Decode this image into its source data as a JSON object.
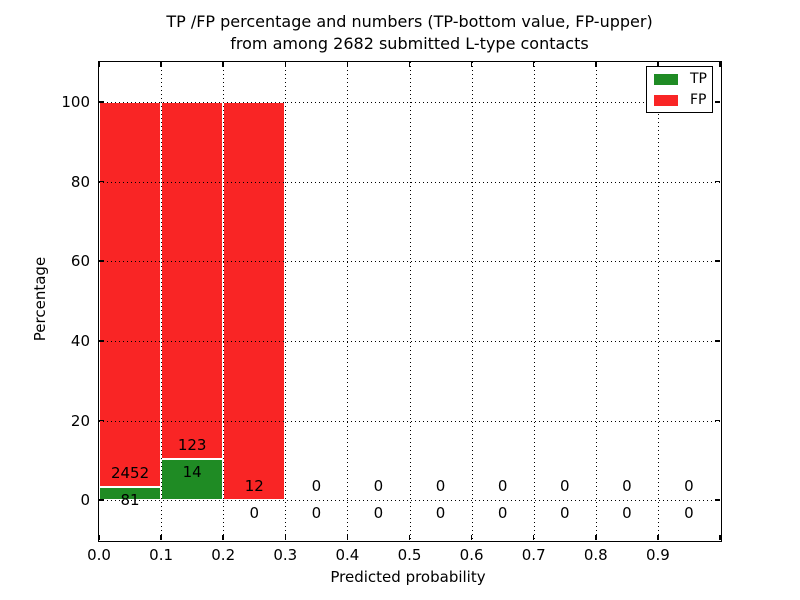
{
  "chart_data": {
    "type": "bar",
    "stacked": true,
    "percentage_normalized": true,
    "title_line1": "TP /FP percentage and numbers (TP-bottom value, FP-upper)",
    "title_line2": "from among 2682 submitted L-type contacts",
    "xlabel": "Predicted probability",
    "ylabel": "Percentage",
    "xlim": [
      0.0,
      1.0
    ],
    "ylim": [
      -10,
      110
    ],
    "xtick_labels": [
      "0.0",
      "0.1",
      "0.2",
      "0.3",
      "0.4",
      "0.5",
      "0.6",
      "0.7",
      "0.8",
      "0.9"
    ],
    "ytick_values": [
      0,
      20,
      40,
      60,
      80,
      100
    ],
    "grid_style": "dotted",
    "total_contacts": 2682,
    "legend": {
      "position": "upper right",
      "entries": [
        {
          "name": "TP",
          "color": "#1f8b24"
        },
        {
          "name": "FP",
          "color": "#f92525"
        }
      ]
    },
    "bins": [
      {
        "x_start": 0.0,
        "x_end": 0.1,
        "tp_count": 81,
        "fp_count": 2452,
        "tp_pct": 3.2,
        "fp_pct": 96.8
      },
      {
        "x_start": 0.1,
        "x_end": 0.2,
        "tp_count": 14,
        "fp_count": 123,
        "tp_pct": 10.2,
        "fp_pct": 89.8
      },
      {
        "x_start": 0.2,
        "x_end": 0.3,
        "tp_count": 0,
        "fp_count": 12,
        "tp_pct": 0.0,
        "fp_pct": 100.0
      },
      {
        "x_start": 0.3,
        "x_end": 0.4,
        "tp_count": 0,
        "fp_count": 0,
        "tp_pct": 0.0,
        "fp_pct": 0.0
      },
      {
        "x_start": 0.4,
        "x_end": 0.5,
        "tp_count": 0,
        "fp_count": 0,
        "tp_pct": 0.0,
        "fp_pct": 0.0
      },
      {
        "x_start": 0.5,
        "x_end": 0.6,
        "tp_count": 0,
        "fp_count": 0,
        "tp_pct": 0.0,
        "fp_pct": 0.0
      },
      {
        "x_start": 0.6,
        "x_end": 0.7,
        "tp_count": 0,
        "fp_count": 0,
        "tp_pct": 0.0,
        "fp_pct": 0.0
      },
      {
        "x_start": 0.7,
        "x_end": 0.8,
        "tp_count": 0,
        "fp_count": 0,
        "tp_pct": 0.0,
        "fp_pct": 0.0
      },
      {
        "x_start": 0.8,
        "x_end": 0.9,
        "tp_count": 0,
        "fp_count": 0,
        "tp_pct": 0.0,
        "fp_pct": 0.0
      },
      {
        "x_start": 0.9,
        "x_end": 1.0,
        "tp_count": 0,
        "fp_count": 0,
        "tp_pct": 0.0,
        "fp_pct": 0.0
      }
    ]
  },
  "colors": {
    "tp_green": "#1f8b24",
    "fp_red": "#f92525",
    "grid": "#000000",
    "background": "#ffffff"
  }
}
